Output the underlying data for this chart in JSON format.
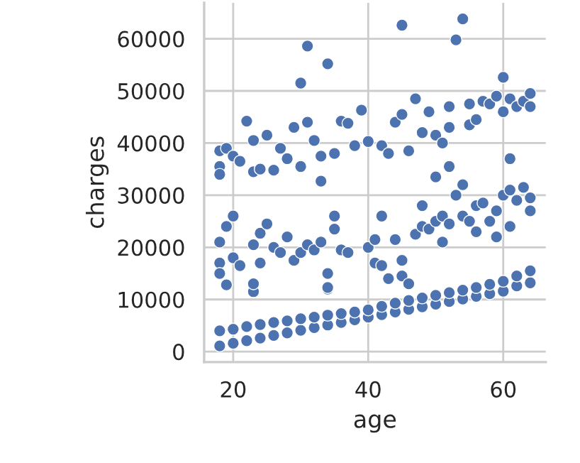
{
  "chart_data": {
    "type": "scatter",
    "xlabel": "age",
    "ylabel": "charges",
    "color": "#4c72b0",
    "marker": "circle",
    "grid": true,
    "xlim": [
      15.7,
      66.3
    ],
    "ylim": [
      -2000,
      66900
    ],
    "xticks": [
      20,
      40,
      60
    ],
    "yticks": [
      0,
      10000,
      20000,
      30000,
      40000,
      50000,
      60000
    ],
    "x": [
      18,
      20,
      22,
      24,
      26,
      28,
      30,
      32,
      34,
      36,
      38,
      40,
      42,
      44,
      46,
      48,
      50,
      52,
      54,
      56,
      58,
      60,
      62,
      64,
      18,
      20,
      22,
      24,
      26,
      28,
      30,
      32,
      34,
      36,
      38,
      40,
      42,
      44,
      46,
      48,
      50,
      52,
      54,
      56,
      58,
      60,
      62,
      64,
      18,
      18,
      18,
      19,
      19,
      20,
      20,
      21,
      23,
      23,
      23,
      24,
      24,
      25,
      26,
      27,
      28,
      29,
      30,
      31,
      32,
      33,
      34,
      34,
      34,
      35,
      35,
      36,
      37,
      40,
      41,
      41,
      42,
      42,
      43,
      44,
      45,
      45,
      46,
      47,
      48,
      48,
      49,
      50,
      51,
      51,
      52,
      53,
      54,
      55,
      56,
      56,
      57,
      58,
      59,
      59,
      60,
      61,
      61,
      62,
      63,
      64,
      64,
      18,
      18,
      18,
      19,
      20,
      21,
      22,
      23,
      23,
      24,
      25,
      26,
      27,
      28,
      29,
      30,
      30,
      31,
      31,
      32,
      33,
      33,
      34,
      35,
      36,
      37,
      38,
      39,
      40,
      42,
      43,
      44,
      45,
      45,
      46,
      47,
      48,
      49,
      50,
      51,
      52,
      52,
      53,
      54,
      55,
      55,
      56,
      57,
      58,
      59,
      60,
      60,
      61,
      62,
      63,
      64,
      64,
      50,
      52,
      54,
      61
    ],
    "values": [
      1100,
      1600,
      2100,
      2600,
      3100,
      3600,
      4100,
      4600,
      5100,
      5600,
      6100,
      6600,
      7100,
      7600,
      8100,
      8600,
      9100,
      9600,
      10100,
      10600,
      11100,
      11600,
      12600,
      13200,
      4000,
      4300,
      4800,
      5200,
      5600,
      5900,
      6300,
      6600,
      7000,
      7300,
      7600,
      8000,
      8700,
      9300,
      9800,
      10300,
      10800,
      11300,
      11800,
      12300,
      12900,
      13500,
      14500,
      15500,
      21000,
      17000,
      15000,
      12800,
      24000,
      26000,
      18000,
      16500,
      11500,
      13000,
      20500,
      22700,
      17000,
      24500,
      20000,
      19000,
      22000,
      17500,
      19000,
      20500,
      19500,
      21000,
      12000,
      12300,
      15000,
      26000,
      23500,
      19500,
      19000,
      20000,
      21500,
      17000,
      26000,
      16500,
      14000,
      21500,
      17500,
      14500,
      13000,
      22500,
      24000,
      28000,
      23500,
      25000,
      21000,
      26000,
      24500,
      30000,
      26000,
      25000,
      23000,
      28000,
      28500,
      25000,
      27000,
      22000,
      30000,
      31000,
      24000,
      29000,
      31500,
      29500,
      27000,
      38500,
      35500,
      34000,
      39000,
      37500,
      36500,
      44200,
      40500,
      34500,
      35000,
      41500,
      34800,
      39000,
      37000,
      43000,
      51500,
      35500,
      44000,
      58600,
      40500,
      32700,
      37500,
      55200,
      38000,
      44200,
      43800,
      39500,
      46300,
      40300,
      39500,
      38000,
      44000,
      45500,
      62600,
      38500,
      48500,
      42000,
      46000,
      41500,
      40000,
      43000,
      47000,
      59800,
      63800,
      47500,
      43500,
      44500,
      48000,
      47500,
      49000,
      52600,
      46000,
      48500,
      47000,
      48000,
      49500,
      47000,
      33500,
      35500,
      32000,
      37000
    ]
  }
}
